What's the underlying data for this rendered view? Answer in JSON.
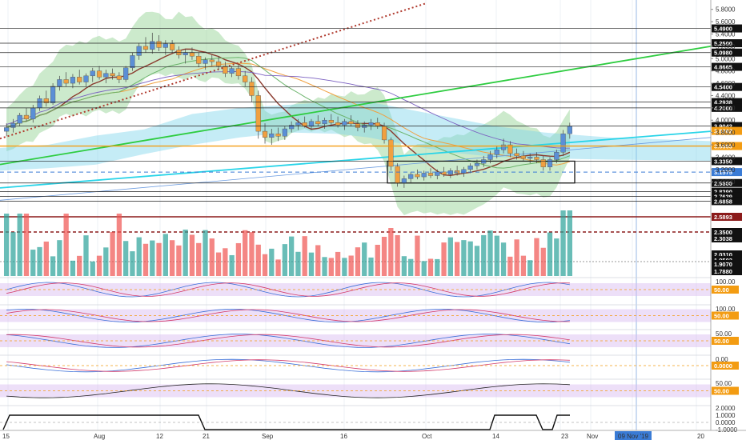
{
  "chart_data": {
    "type": "candlestick",
    "title": "",
    "price_axis": {
      "ticks": [
        "5.8000",
        "5.6000",
        "5.4000",
        "5.2000",
        "5.0000",
        "4.8000",
        "4.6000",
        "4.4000",
        "4.2000",
        "4.0000",
        "3.8000",
        "3.6000",
        "3.4000",
        "3.2000",
        "3.0000"
      ],
      "range": [
        2.6,
        5.9
      ]
    },
    "price_levels": [
      {
        "label": "5.4900",
        "value": 5.49,
        "style": "black"
      },
      {
        "label": "5.2500",
        "value": 5.25,
        "style": "black"
      },
      {
        "label": "5.0980",
        "value": 5.098,
        "style": "black"
      },
      {
        "label": "4.8665",
        "value": 4.8665,
        "style": "black"
      },
      {
        "label": "4.5400",
        "value": 4.54,
        "style": "black"
      },
      {
        "label": "4.2938",
        "value": 4.2938,
        "style": "black"
      },
      {
        "label": "4.2000",
        "value": 4.2,
        "style": "black"
      },
      {
        "label": "3.9042",
        "value": 3.9042,
        "style": "black"
      },
      {
        "label": "3.8262",
        "value": 3.8262,
        "style": "orange-small"
      },
      {
        "label": "3.5803",
        "value": 3.5803,
        "style": "orange"
      },
      {
        "label": "3.3350",
        "value": 3.335,
        "style": "black"
      },
      {
        "label": "3.1575",
        "value": 3.1575,
        "style": "blue"
      },
      {
        "label": "2.9800",
        "value": 2.98,
        "style": "black"
      },
      {
        "label": "2.8390",
        "value": 2.839,
        "style": "black"
      },
      {
        "label": "2.7639",
        "value": 2.7639,
        "style": "black"
      },
      {
        "label": "2.6858",
        "value": 2.6858,
        "style": "black"
      }
    ],
    "candles": [
      [
        3.82,
        3.95,
        3.74,
        3.88
      ],
      [
        3.88,
        4.02,
        3.8,
        3.95
      ],
      [
        3.95,
        4.12,
        3.9,
        4.08
      ],
      [
        4.08,
        4.2,
        3.98,
        4.02
      ],
      [
        4.02,
        4.25,
        3.96,
        4.2
      ],
      [
        4.2,
        4.4,
        4.15,
        4.35
      ],
      [
        4.35,
        4.48,
        4.22,
        4.28
      ],
      [
        4.28,
        4.6,
        4.25,
        4.55
      ],
      [
        4.55,
        4.72,
        4.48,
        4.66
      ],
      [
        4.66,
        4.78,
        4.55,
        4.6
      ],
      [
        4.6,
        4.75,
        4.52,
        4.7
      ],
      [
        4.7,
        4.82,
        4.58,
        4.62
      ],
      [
        4.62,
        4.76,
        4.55,
        4.72
      ],
      [
        4.72,
        4.85,
        4.62,
        4.8
      ],
      [
        4.8,
        4.88,
        4.66,
        4.7
      ],
      [
        4.7,
        4.82,
        4.6,
        4.76
      ],
      [
        4.76,
        4.84,
        4.66,
        4.72
      ],
      [
        4.72,
        4.78,
        4.6,
        4.66
      ],
      [
        4.66,
        4.88,
        4.62,
        4.85
      ],
      [
        4.85,
        5.1,
        4.8,
        5.05
      ],
      [
        5.05,
        5.25,
        4.98,
        5.2
      ],
      [
        5.2,
        5.35,
        5.1,
        5.15
      ],
      [
        5.15,
        5.42,
        5.08,
        5.28
      ],
      [
        5.28,
        5.38,
        5.12,
        5.18
      ],
      [
        5.18,
        5.3,
        5.06,
        5.24
      ],
      [
        5.24,
        5.3,
        5.1,
        5.14
      ],
      [
        5.14,
        5.2,
        5.0,
        5.06
      ],
      [
        5.06,
        5.16,
        4.92,
        5.1
      ],
      [
        5.1,
        5.18,
        4.98,
        5.04
      ],
      [
        5.04,
        5.1,
        4.86,
        4.92
      ],
      [
        4.92,
        5.02,
        4.82,
        4.98
      ],
      [
        4.98,
        5.06,
        4.88,
        4.95
      ],
      [
        4.95,
        5.04,
        4.82,
        4.88
      ],
      [
        4.88,
        4.95,
        4.7,
        4.76
      ],
      [
        4.76,
        4.88,
        4.7,
        4.84
      ],
      [
        4.84,
        4.9,
        4.66,
        4.72
      ],
      [
        4.72,
        4.8,
        4.55,
        4.62
      ],
      [
        4.62,
        4.7,
        4.3,
        4.4
      ],
      [
        4.4,
        4.48,
        3.7,
        3.82
      ],
      [
        3.82,
        3.95,
        3.62,
        3.72
      ],
      [
        3.72,
        3.86,
        3.6,
        3.78
      ],
      [
        3.78,
        3.88,
        3.66,
        3.74
      ],
      [
        3.74,
        3.9,
        3.68,
        3.86
      ],
      [
        3.86,
        3.98,
        3.8,
        3.92
      ],
      [
        3.92,
        4.02,
        3.84,
        3.96
      ],
      [
        3.96,
        4.06,
        3.88,
        3.9
      ],
      [
        3.9,
        4.02,
        3.84,
        3.98
      ],
      [
        3.98,
        4.08,
        3.9,
        3.94
      ],
      [
        3.94,
        4.04,
        3.86,
        4.0
      ],
      [
        4.0,
        4.1,
        3.92,
        3.96
      ],
      [
        3.96,
        4.06,
        3.88,
        3.92
      ],
      [
        3.92,
        4.02,
        3.84,
        3.98
      ],
      [
        3.98,
        4.08,
        3.9,
        3.94
      ],
      [
        3.94,
        4.0,
        3.82,
        3.88
      ],
      [
        3.88,
        3.98,
        3.8,
        3.92
      ],
      [
        3.92,
        4.02,
        3.84,
        3.96
      ],
      [
        3.96,
        4.04,
        3.86,
        3.9
      ],
      [
        3.9,
        3.96,
        3.62,
        3.68
      ],
      [
        3.68,
        3.72,
        3.18,
        3.25
      ],
      [
        3.25,
        3.3,
        2.92,
        2.98
      ],
      [
        2.98,
        3.1,
        2.9,
        3.05
      ],
      [
        3.05,
        3.16,
        2.98,
        3.12
      ],
      [
        3.12,
        3.2,
        3.04,
        3.08
      ],
      [
        3.08,
        3.18,
        3.02,
        3.14
      ],
      [
        3.14,
        3.22,
        3.06,
        3.1
      ],
      [
        3.1,
        3.2,
        3.04,
        3.16
      ],
      [
        3.16,
        3.24,
        3.08,
        3.12
      ],
      [
        3.12,
        3.22,
        3.06,
        3.18
      ],
      [
        3.18,
        3.26,
        3.1,
        3.14
      ],
      [
        3.14,
        3.24,
        3.08,
        3.2
      ],
      [
        3.2,
        3.3,
        3.14,
        3.26
      ],
      [
        3.26,
        3.36,
        3.2,
        3.3
      ],
      [
        3.3,
        3.42,
        3.24,
        3.36
      ],
      [
        3.36,
        3.5,
        3.3,
        3.44
      ],
      [
        3.44,
        3.58,
        3.38,
        3.52
      ],
      [
        3.52,
        3.7,
        3.46,
        3.6
      ],
      [
        3.6,
        3.66,
        3.4,
        3.46
      ],
      [
        3.46,
        3.54,
        3.36,
        3.42
      ],
      [
        3.42,
        3.5,
        3.34,
        3.38
      ],
      [
        3.38,
        3.46,
        3.3,
        3.4
      ],
      [
        3.4,
        3.48,
        3.3,
        3.36
      ],
      [
        3.36,
        3.42,
        3.18,
        3.24
      ],
      [
        3.24,
        3.4,
        3.18,
        3.36
      ],
      [
        3.36,
        3.52,
        3.3,
        3.48
      ],
      [
        3.48,
        3.84,
        3.42,
        3.78
      ],
      [
        3.78,
        3.96,
        3.7,
        3.9
      ]
    ],
    "trend_lines": [
      {
        "name": "",
        "color": "#2ecc40",
        "from": [
          0,
          3.28
        ],
        "to": [
          100,
          5.2
        ]
      },
      {
        "name": "",
        "color": "#29d4e8",
        "from": [
          0,
          2.9
        ],
        "to": [
          100,
          3.82
        ]
      },
      {
        "name": "",
        "color": "#b03a2e",
        "from": [
          0,
          3.7
        ],
        "to": [
          100,
          6.3
        ]
      }
    ],
    "volume_levels": [
      "2.5893",
      "2.3500",
      "2.3038",
      "2.0310",
      "1.9503",
      "1.9070",
      "1.7880"
    ],
    "oscillators": [
      {
        "level_label": "50.00",
        "tick": "100.00"
      },
      {
        "level_label": "50.00",
        "tick": "100.00"
      },
      {
        "level_label": "50.00",
        "tick": "50.00"
      },
      {
        "level_label": "0.0000",
        "tick": "0.00"
      },
      {
        "level_label": "50.00",
        "tick": "50.00"
      },
      {
        "level_label": "",
        "ticks": [
          "2.0000",
          "1.0000",
          "0.0000",
          "-1.0000"
        ]
      }
    ],
    "x_axis": {
      "ticks": [
        "15",
        "Aug",
        "12",
        "21",
        "Sep",
        "16",
        "Oct",
        "14",
        "23",
        "Nov",
        "09 Nov '19",
        "20"
      ]
    },
    "colors": {
      "bull": "#2aa198",
      "bear": "#ef5350",
      "candle_bull": "#5b8fd6",
      "candle_bear": "#f0a040",
      "cloud_green": "#8fd18f",
      "cloud_blue": "#7fd4ea"
    }
  }
}
